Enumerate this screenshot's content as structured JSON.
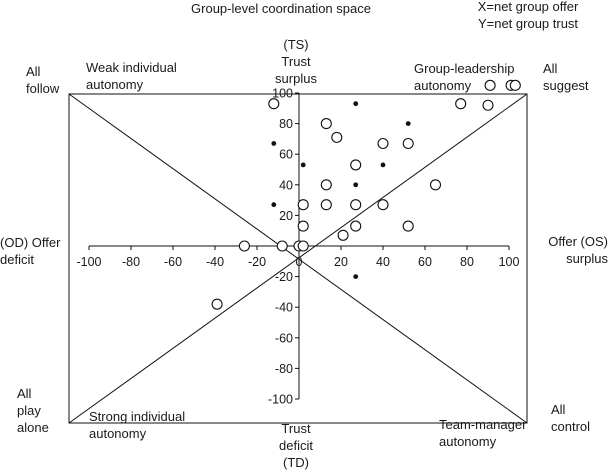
{
  "figure": {
    "title": "Group-level coordination space",
    "xy_note_lines": [
      "X=net group offer",
      "Y=net group trust"
    ],
    "top_label_lines": [
      "(TS)",
      "Trust",
      "surplus"
    ],
    "bottom_label_lines": [
      "Trust",
      "deficit",
      "(TD)"
    ],
    "left_label_lines": [
      "(OD) Offer",
      "deficit"
    ],
    "right_label_lines": [
      "Offer (OS)",
      "surplus"
    ],
    "corner_top_left_lines": [
      "All",
      "follow"
    ],
    "corner_top_right_lines": [
      "All",
      "suggest"
    ],
    "corner_bottom_left_lines": [
      "All",
      "play",
      "alone"
    ],
    "corner_bottom_right_lines": [
      "All",
      "control"
    ],
    "quadrant_top_left_lines": [
      "Weak individual",
      "autonomy"
    ],
    "quadrant_top_right_lines": [
      "Group-leadership",
      "autonomy"
    ],
    "quadrant_bottom_left_lines": [
      "Strong individual",
      "autonomy"
    ],
    "quadrant_bottom_right_lines": [
      "Team-manager",
      "autonomy"
    ]
  },
  "chart_data": {
    "type": "scatter",
    "xlim": [
      -100,
      100
    ],
    "ylim": [
      -100,
      100
    ],
    "x_ticks": [
      -100,
      -80,
      -60,
      -40,
      -20,
      0,
      20,
      40,
      60,
      80,
      100
    ],
    "y_ticks": [
      -100,
      -80,
      -60,
      -40,
      -20,
      0,
      20,
      40,
      60,
      80,
      100
    ],
    "x_tick_labels": [
      "-100",
      "-80",
      "-60",
      "-40",
      "-20",
      "0",
      "20",
      "40",
      "60",
      "80",
      "100"
    ],
    "y_tick_labels": [
      "-100",
      "-80",
      "-60",
      "-40",
      "-20",
      "0",
      "20",
      "40",
      "60",
      "80",
      "100"
    ],
    "grid": false,
    "diagonals": true,
    "series": [
      {
        "marker": "open-circle",
        "points": [
          [
            -12,
            93
          ],
          [
            13,
            80
          ],
          [
            18,
            71
          ],
          [
            13,
            40
          ],
          [
            13,
            27
          ],
          [
            27,
            53
          ],
          [
            27,
            27
          ],
          [
            27,
            13
          ],
          [
            21,
            7
          ],
          [
            2,
            27
          ],
          [
            2,
            13
          ],
          [
            40,
            67
          ],
          [
            40,
            27
          ],
          [
            52,
            67
          ],
          [
            52,
            13
          ],
          [
            65,
            40
          ],
          [
            77,
            93
          ],
          [
            90,
            92
          ],
          [
            91,
            105
          ],
          [
            101,
            105
          ],
          [
            103,
            105
          ],
          [
            -26,
            0
          ],
          [
            -8,
            0
          ],
          [
            0,
            0
          ],
          [
            2,
            0
          ],
          [
            -39,
            -38
          ]
        ]
      },
      {
        "marker": "filled-dot",
        "points": [
          [
            -12,
            67
          ],
          [
            -12,
            27
          ],
          [
            2,
            53
          ],
          [
            27,
            93
          ],
          [
            27,
            40
          ],
          [
            40,
            53
          ],
          [
            52,
            80
          ],
          [
            27,
            -20
          ]
        ]
      }
    ]
  }
}
